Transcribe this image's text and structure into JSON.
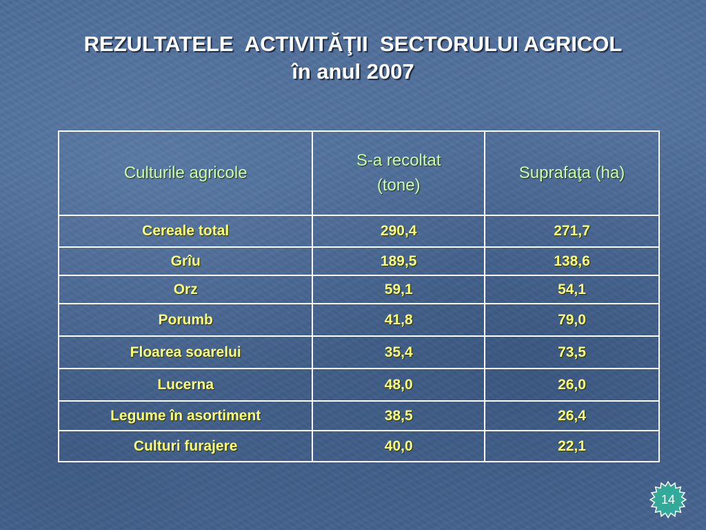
{
  "slide": {
    "title_line1": "REZULTATELE  ACTIVITĂŢII  SECTORULUI AGRICOL",
    "title_line2": "în anul 2007",
    "page_number": "14"
  },
  "table": {
    "headers": [
      "Culturile agricole",
      "S-a recoltat\n(tone)",
      "Suprafaţa (ha)"
    ],
    "rows": [
      [
        "Cereale total",
        "290,4",
        "271,7"
      ],
      [
        "Grîu",
        "189,5",
        "138,6"
      ],
      [
        "Orz",
        "59,1",
        "54,1"
      ],
      [
        "Porumb",
        "41,8",
        "79,0"
      ],
      [
        "Floarea soarelui",
        "35,4",
        "73,5"
      ],
      [
        "Lucerna",
        "48,0",
        "26,0"
      ],
      [
        "Legume în asortiment",
        "38,5",
        "26,4"
      ],
      [
        "Culturi furajere",
        "40,0",
        "22,1"
      ]
    ]
  },
  "colors": {
    "background": "#4a6a96",
    "title_text": "#ffffff",
    "header_text": "#ccff99",
    "cell_text": "#ffff66",
    "badge_fill": "#33aa99",
    "grid_lines": "#ffffff"
  }
}
